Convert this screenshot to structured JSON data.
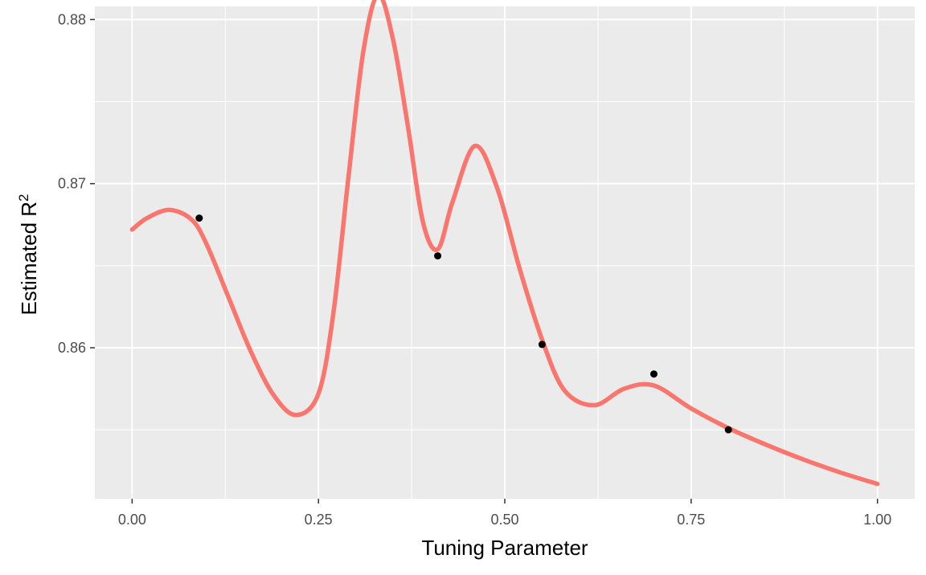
{
  "chart_data": {
    "type": "line",
    "xlabel": "Tuning Parameter",
    "ylabel": "Estimated R",
    "ylabel_superscript": "2",
    "xlim": [
      -0.05,
      1.05
    ],
    "ylim": [
      0.8508,
      0.8808
    ],
    "x_ticks": [
      0.0,
      0.25,
      0.5,
      0.75,
      1.0
    ],
    "x_tick_labels": [
      "0.00",
      "0.25",
      "0.50",
      "0.75",
      "1.00"
    ],
    "x_minor_ticks": [
      0.125,
      0.375,
      0.625,
      0.875
    ],
    "y_ticks": [
      0.86,
      0.87,
      0.88
    ],
    "y_tick_labels": [
      "0.86",
      "0.87",
      "0.88"
    ],
    "y_minor_ticks": [
      0.855,
      0.865,
      0.875
    ],
    "grid": true,
    "legend": "none",
    "colors": {
      "panel_background": "#ebebeb",
      "grid": "#ffffff",
      "curve": "#f8766d",
      "points": "#000000"
    },
    "points": {
      "x": [
        0.09,
        0.41,
        0.55,
        0.7,
        0.8
      ],
      "y": [
        0.8679,
        0.8656,
        0.8602,
        0.8584,
        0.855
      ]
    },
    "curve": {
      "x": [
        0.0,
        0.02,
        0.05,
        0.08,
        0.1,
        0.13,
        0.16,
        0.19,
        0.22,
        0.25,
        0.27,
        0.29,
        0.31,
        0.33,
        0.35,
        0.37,
        0.39,
        0.41,
        0.43,
        0.46,
        0.49,
        0.52,
        0.55,
        0.58,
        0.62,
        0.66,
        0.7,
        0.75,
        0.8,
        0.85,
        0.9,
        0.95,
        1.0
      ],
      "y": [
        0.8672,
        0.8679,
        0.8684,
        0.8678,
        0.8663,
        0.863,
        0.8597,
        0.8571,
        0.8559,
        0.8572,
        0.8621,
        0.8703,
        0.878,
        0.8815,
        0.8788,
        0.8735,
        0.8677,
        0.866,
        0.8689,
        0.8723,
        0.8697,
        0.8648,
        0.8605,
        0.8574,
        0.8565,
        0.8575,
        0.8577,
        0.8563,
        0.8551,
        0.8541,
        0.8532,
        0.8524,
        0.8517
      ]
    }
  }
}
